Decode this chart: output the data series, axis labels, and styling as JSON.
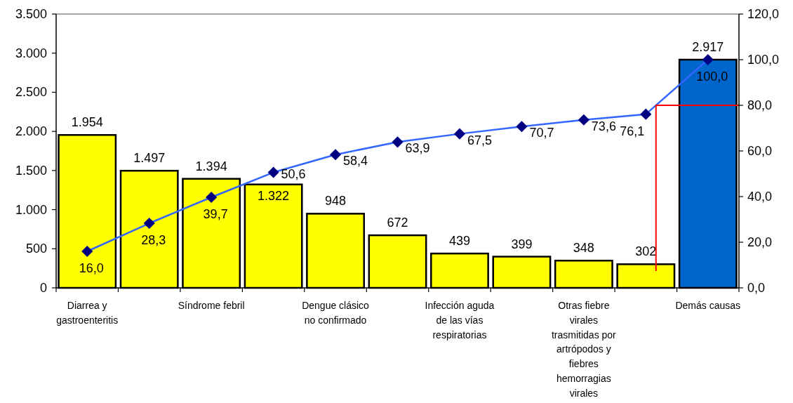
{
  "chart_data": {
    "type": "bar",
    "categories": [
      "Diarrea y gastroenteritis",
      null,
      "Síndrome febril",
      null,
      "Dengue clásico no confirmado",
      null,
      "Infección aguda de las vías respiratorias",
      null,
      "Otras fiebre virales trasmitidas por artrópodos y fiebres hemorragias virales",
      null,
      "Demás causas"
    ],
    "series": [
      {
        "values": [
          1954,
          1497,
          1394,
          1322,
          948,
          672,
          439,
          399,
          348,
          302,
          2917
        ],
        "colors": [
          "#ffff00",
          "#ffff00",
          "#ffff00",
          "#ffff00",
          "#ffff00",
          "#ffff00",
          "#ffff00",
          "#ffff00",
          "#ffff00",
          "#ffff00",
          "#0066cc"
        ],
        "value_labels": [
          "1.954",
          "1.497",
          "1.394",
          "1.322",
          "948",
          "672",
          "439",
          "399",
          "348",
          "302",
          "2.917"
        ]
      },
      {
        "type": "line",
        "axis": "y2",
        "color": "#3366ff",
        "colors": [
          "#000080",
          "#000080",
          "#000080",
          "#000080",
          "#000080",
          "#000080",
          "#000080",
          "#000080",
          "#000080",
          "#000080",
          "#000080"
        ],
        "values": [
          16.0,
          28.3,
          39.7,
          50.6,
          58.4,
          63.9,
          67.5,
          70.7,
          73.6,
          76.1,
          100.0
        ],
        "value_labels": [
          "16,0",
          "28,3",
          "39,7",
          "50,6",
          "58,4",
          "63,9",
          "67,5",
          "70,7",
          "73,6",
          "76,1",
          "100,0"
        ]
      }
    ],
    "marker": "diamond",
    "ylim": [
      0,
      3500
    ],
    "yticks": [
      0,
      500,
      {
        "value": 1000,
        "label": "1.000"
      },
      {
        "value": 1500,
        "label": "1.500"
      },
      {
        "value": 2000,
        "label": "2.000"
      },
      {
        "value": 2500,
        "label": "2.500"
      },
      {
        "value": 3000,
        "label": "3.000"
      },
      {
        "value": 3500,
        "label": "3.500"
      }
    ],
    "y2lim": [
      0,
      120
    ],
    "y2ticks": [
      {
        "value": 0,
        "label": "0,0"
      },
      {
        "value": 20,
        "label": "20,0"
      },
      {
        "value": 40,
        "label": "40,0"
      },
      {
        "value": 60,
        "label": "60,0"
      },
      {
        "value": 80,
        "label": "80,0"
      },
      {
        "value": 100,
        "label": "100,0"
      },
      {
        "value": 120,
        "label": "120,0"
      }
    ],
    "ref_lines": [
      {
        "axis": "y2",
        "value": 80,
        "color": "#ff0000"
      }
    ]
  }
}
